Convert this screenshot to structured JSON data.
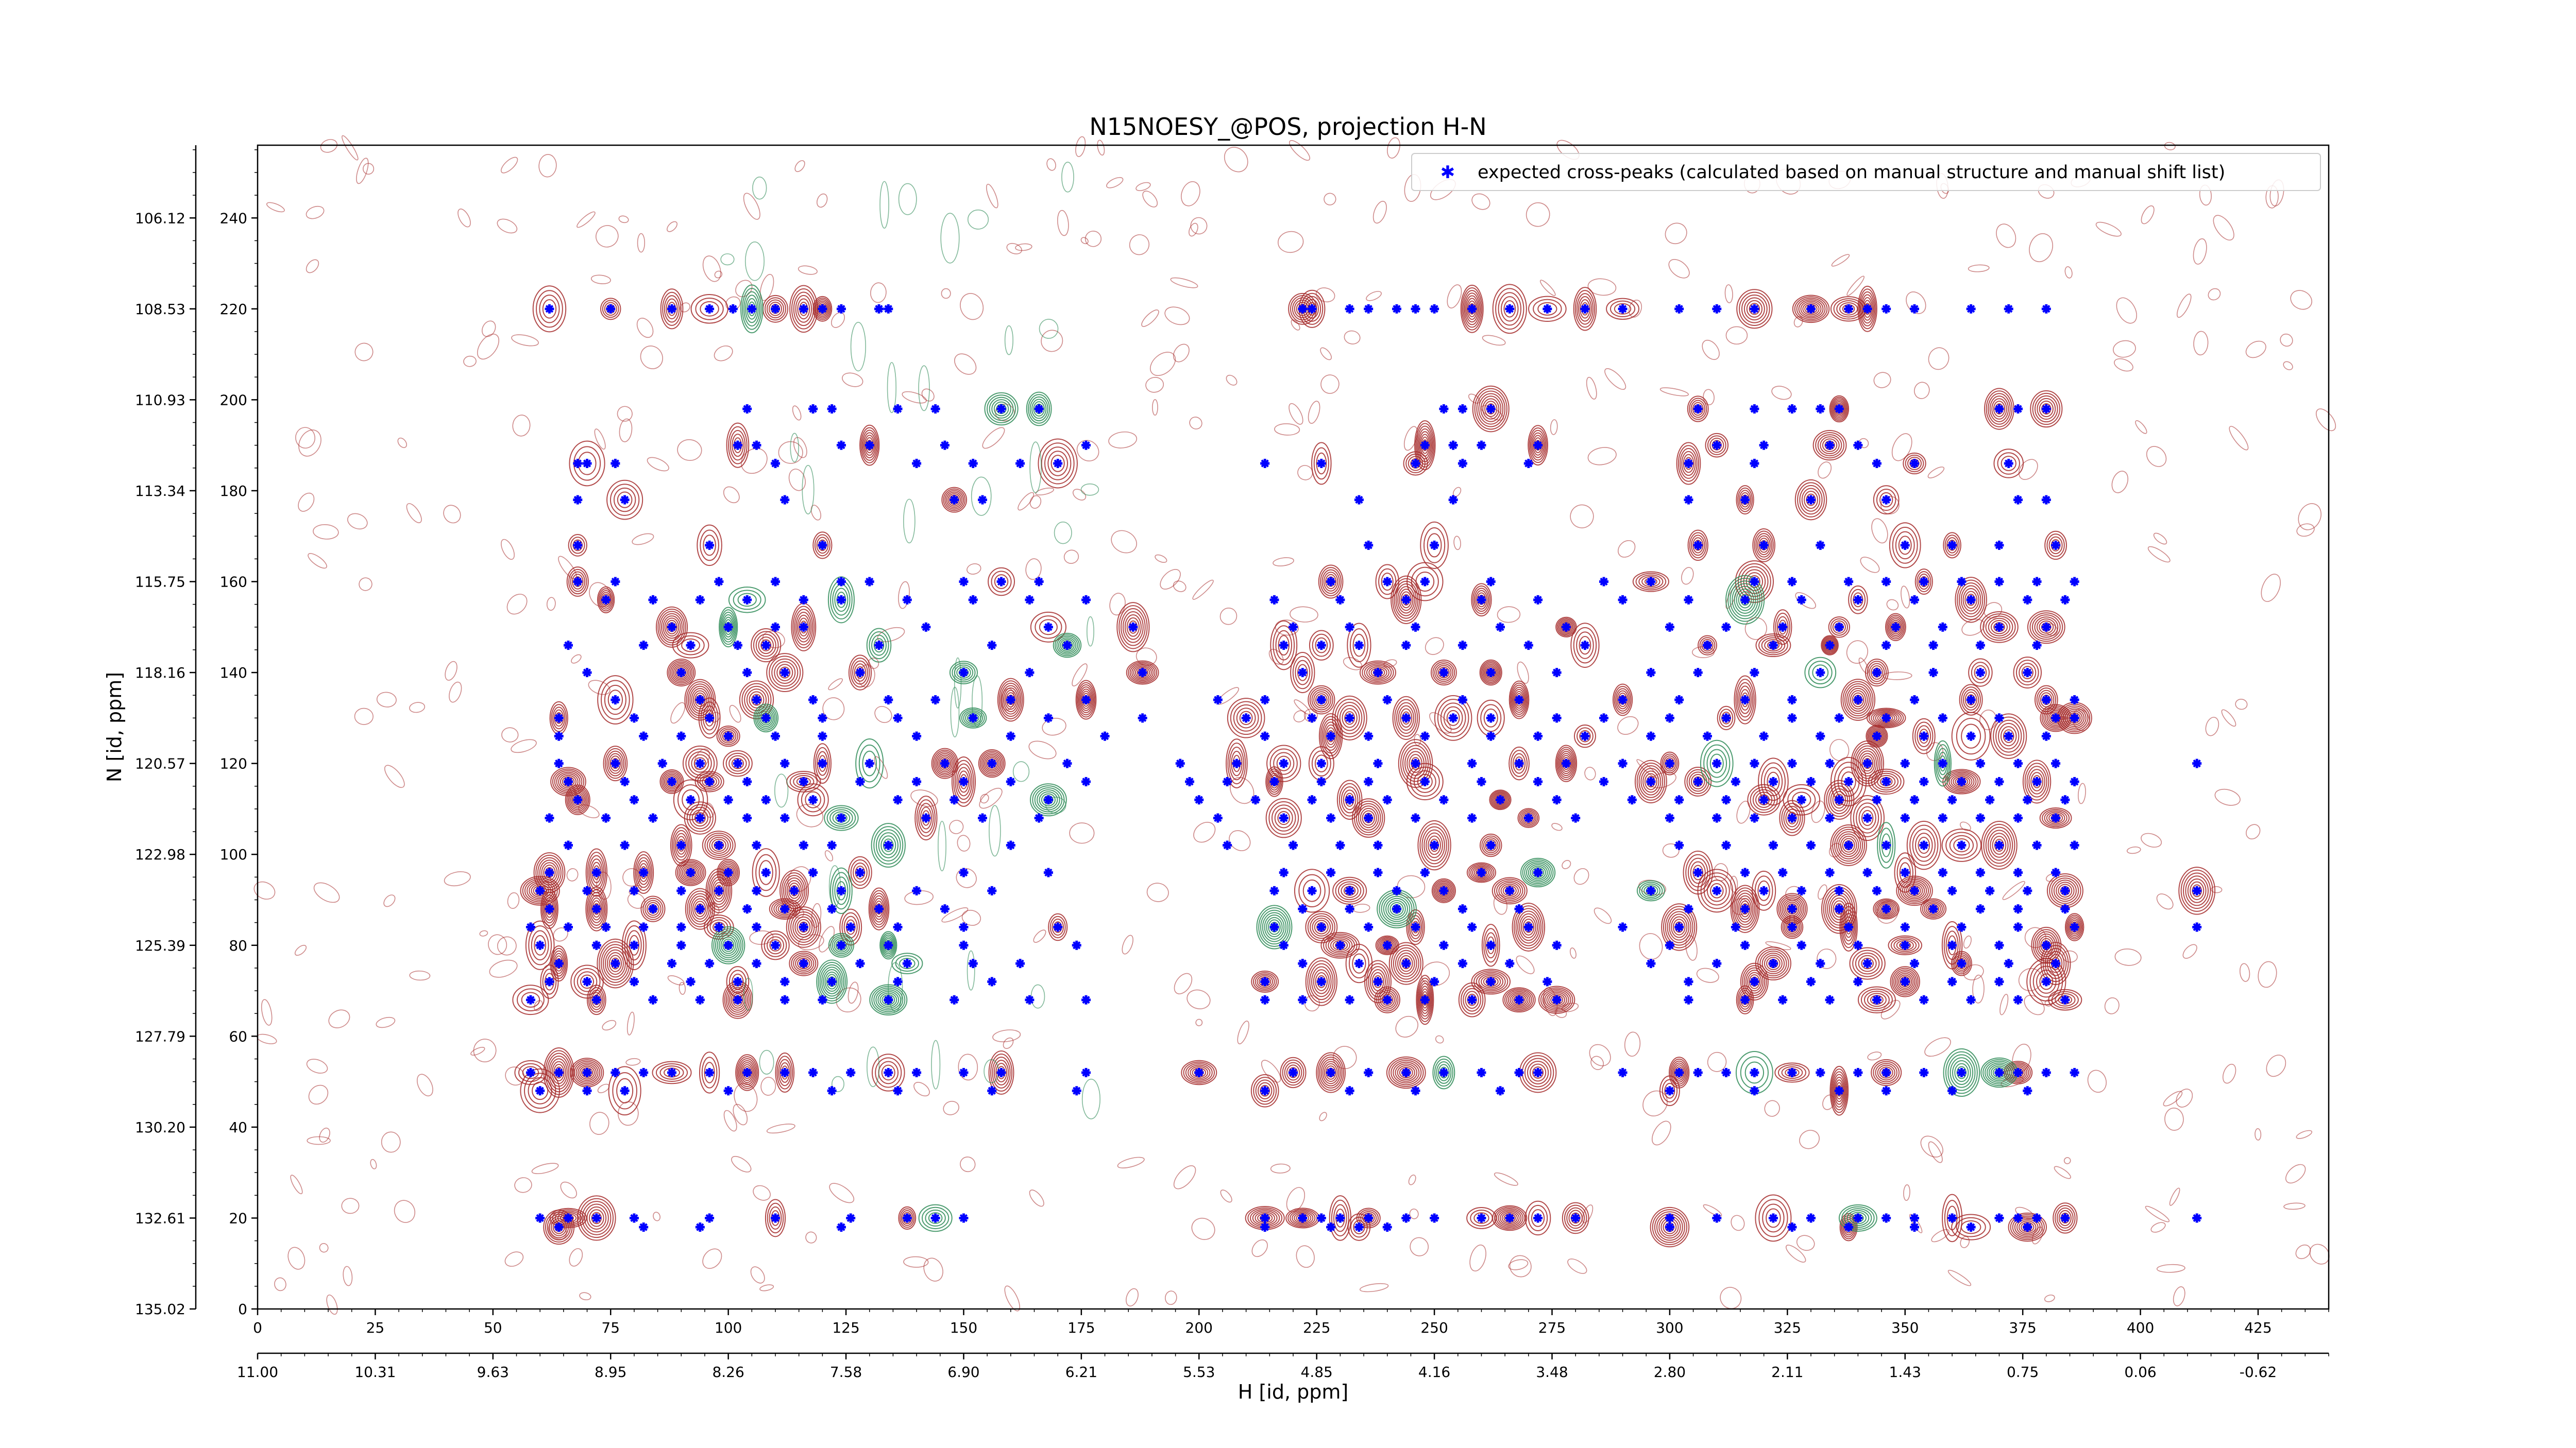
{
  "chart_data": {
    "type": "scatter",
    "title": "N15NOESY_@POS, projection H-N",
    "xlabel": "H [id, ppm]",
    "ylabel": "N [id, ppm]",
    "xlim": [
      0,
      440
    ],
    "ylim": [
      0,
      256
    ],
    "x_ticks": [
      0,
      25,
      50,
      75,
      100,
      125,
      150,
      175,
      200,
      225,
      250,
      275,
      300,
      325,
      350,
      375,
      400,
      425
    ],
    "x_ppm_ticks": [
      "11.00",
      "10.31",
      "9.63",
      "8.95",
      "8.26",
      "7.58",
      "6.90",
      "6.21",
      "5.53",
      "4.85",
      "4.16",
      "3.48",
      "2.80",
      "2.11",
      "1.43",
      "0.75",
      "0.06",
      "-0.62"
    ],
    "y_ticks": [
      0,
      20,
      40,
      60,
      80,
      100,
      120,
      140,
      160,
      180,
      200,
      220,
      240
    ],
    "y_ppm_ticks": [
      "135.02",
      "132.61",
      "130.20",
      "127.79",
      "125.39",
      "122.98",
      "120.57",
      "118.16",
      "115.75",
      "113.34",
      "110.93",
      "108.53",
      "106.12"
    ],
    "legend": {
      "placement": "top-right",
      "entries": [
        "expected cross-peaks (calculated based on manual structure and manual shift list)"
      ]
    },
    "colors": {
      "expected": "#0000ff",
      "positive_contour": "#a52a2a",
      "negative_contour": "#2e8b57"
    },
    "series": [
      {
        "name": "expected cross-peaks (calculated based on manual structure and manual shift list)",
        "rows": [
          {
            "y": 220,
            "x": [
              62,
              75,
              88,
              96,
              101,
              105,
              110,
              116,
              120,
              124,
              132,
              134,
              222,
              224,
              232,
              236,
              242,
              246,
              250,
              258,
              266,
              274,
              282,
              290,
              302,
              310,
              318,
              330,
              338,
              342,
              346,
              352,
              364,
              372,
              380
            ]
          },
          {
            "y": 198,
            "x": [
              104,
              118,
              122,
              136,
              144,
              158,
              166,
              252,
              256,
              262,
              306,
              318,
              326,
              332,
              336,
              370,
              374,
              380
            ]
          },
          {
            "y": 190,
            "x": [
              102,
              106,
              124,
              130,
              146,
              176,
              248,
              254,
              260,
              272,
              310,
              320,
              334,
              340
            ]
          },
          {
            "y": 186,
            "x": 68
          },
          {
            "y": 186,
            "x": [
              70,
              76,
              110,
              140,
              152,
              162,
              170,
              214,
              226,
              246,
              256,
              270,
              304,
              318,
              344,
              352,
              372
            ]
          },
          {
            "y": 178,
            "x": [
              68,
              78,
              112,
              148,
              154,
              234,
              254,
              304,
              316,
              330,
              346,
              374,
              380
            ]
          },
          {
            "y": 168,
            "x": [
              68,
              96,
              120,
              236,
              250,
              306,
              320,
              332,
              350,
              360,
              370,
              382
            ]
          },
          {
            "y": 160,
            "x": [
              68,
              76,
              98,
              110,
              124,
              130,
              150,
              158,
              166,
              228,
              240,
              248,
              262,
              286,
              296,
              318,
              326,
              338,
              346,
              354,
              362,
              370,
              378,
              386
            ]
          },
          {
            "y": 156,
            "x": [
              74,
              84,
              94,
              104,
              116,
              124,
              138,
              152,
              164,
              176,
              216,
              230,
              244,
              260,
              272,
              290,
              304,
              316,
              328,
              340,
              352,
              364,
              376,
              384
            ]
          },
          {
            "y": 150,
            "x": [
              88,
              100,
              110,
              116,
              142,
              168,
              186,
              220,
              232,
              246,
              264,
              278,
              300,
              312,
              324,
              336,
              348,
              358,
              370,
              380
            ]
          },
          {
            "y": 146,
            "x": [
              66,
              82,
              92,
              102,
              108,
              132,
              156,
              172,
              218,
              226,
              234,
              244,
              256,
              270,
              282,
              308,
              322,
              334,
              346,
              356,
              366,
              378
            ]
          },
          {
            "y": 140,
            "x": [
              70,
              90,
              104,
              112,
              128,
              150,
              164,
              188,
              222,
              238,
              252,
              262,
              276,
              296,
              306,
              318,
              332,
              344,
              356,
              366,
              376
            ]
          },
          {
            "y": 134,
            "x": [
              76,
              94,
              106,
              118,
              134,
              144,
              160,
              176,
              204,
              214,
              226,
              240,
              256,
              268,
              290,
              302,
              316,
              326,
              340,
              352,
              364,
              380,
              386
            ]
          },
          {
            "y": 130,
            "x": [
              64,
              80,
              96,
              108,
              120,
              136,
              152,
              168,
              188,
              210,
              224,
              232,
              244,
              254,
              262,
              276,
              286,
              300,
              312,
              326,
              336,
              346,
              358,
              370,
              382,
              386
            ]
          },
          {
            "y": 126,
            "x": [
              64,
              82,
              90,
              100,
              110,
              120,
              140,
              160,
              180,
              214,
              228,
              236,
              248,
              262,
              272,
              282,
              296,
              308,
              320,
              332,
              344,
              354,
              364,
              372,
              380
            ]
          },
          {
            "y": 120,
            "x": [
              64,
              76,
              86,
              94,
              102,
              112,
              120,
              130,
              146,
              156,
              172,
              196,
              208,
              218,
              226,
              238,
              246,
              258,
              268,
              278,
              290,
              300,
              310,
              318,
              326,
              334,
              342,
              350,
              358,
              366,
              374,
              382,
              412
            ]
          },
          {
            "y": 116,
            "x": [
              66,
              78,
              88,
              96,
              104,
              116,
              128,
              140,
              150,
              160,
              176,
              198,
              206,
              216,
              226,
              236,
              248,
              260,
              272,
              286,
              296,
              306,
              314,
              322,
              330,
              338,
              346,
              354,
              362,
              370,
              378,
              386
            ]
          },
          {
            "y": 112,
            "x": [
              68,
              80,
              92,
              100,
              108,
              118,
              136,
              148,
              168,
              200,
              212,
              224,
              232,
              240,
              252,
              264,
              276,
              292,
              302,
              312,
              320,
              328,
              336,
              344,
              352,
              360,
              368,
              376,
              384
            ]
          },
          {
            "y": 108,
            "x": [
              62,
              74,
              84,
              94,
              104,
              112,
              124,
              142,
              154,
              166,
              204,
              218,
              228,
              236,
              246,
              258,
              270,
              280,
              300,
              310,
              318,
              326,
              334,
              342,
              350,
              358,
              366,
              374,
              382
            ]
          },
          {
            "y": 102,
            "x": [
              66,
              78,
              90,
              98,
              106,
              116,
              122,
              134,
              160,
              206,
              220,
              230,
              238,
              250,
              262,
              302,
              312,
              322,
              330,
              338,
              346,
              354,
              362,
              370,
              378,
              386
            ]
          },
          {
            "y": 96,
            "x": [
              62,
              72,
              82,
              92,
              100,
              108,
              118,
              128,
              150,
              168,
              218,
              228,
              238,
              248,
              260,
              272,
              306,
              316,
              324,
              334,
              342,
              350,
              358,
              366,
              374,
              382
            ]
          },
          {
            "y": 92,
            "x": [
              60,
              70,
              80,
              90,
              98,
              106,
              114,
              124,
              140,
              156,
              216,
              224,
              232,
              242,
              252,
              266,
              296,
              310,
              320,
              328,
              336,
              344,
              352,
              360,
              368,
              376,
              384,
              412
            ]
          },
          {
            "y": 88,
            "x": [
              62,
              72,
              84,
              94,
              104,
              112,
              122,
              132,
              146,
              222,
              232,
              242,
              256,
              268,
              304,
              316,
              326,
              336,
              346,
              356,
              366,
              374,
              384
            ]
          },
          {
            "y": 84,
            "x": [
              58,
              66,
              74,
              82,
              90,
              98,
              106,
              116,
              126,
              136,
              150,
              170,
              216,
              226,
              236,
              246,
              258,
              270,
              290,
              302,
              314,
              326,
              338,
              350,
              362,
              374,
              386,
              412
            ]
          },
          {
            "y": 80,
            "x": [
              60,
              72,
              80,
              90,
              100,
              110,
              124,
              134,
              150,
              174,
              218,
              230,
              240,
              252,
              262,
              276,
              300,
              316,
              328,
              340,
              350,
              360,
              370,
              380
            ]
          },
          {
            "y": 76,
            "x": [
              64,
              76,
              88,
              96,
              106,
              116,
              128,
              138,
              152,
              162,
              222,
              234,
              244,
              256,
              266,
              296,
              310,
              322,
              332,
              342,
              352,
              362,
              372,
              382
            ]
          },
          {
            "y": 72,
            "x": [
              62,
              70,
              80,
              92,
              102,
              112,
              122,
              136,
              156,
              214,
              226,
              238,
              250,
              262,
              274,
              304,
              318,
              330,
              340,
              350,
              360,
              370,
              380
            ]
          },
          {
            "y": 68,
            "x": [
              58,
              72,
              84,
              94,
              102,
              112,
              120,
              134,
              148,
              164,
              176,
              214,
              222,
              232,
              240,
              248,
              258,
              268,
              276,
              304,
              316,
              324,
              334,
              344,
              354,
              364,
              374,
              384
            ]
          },
          {
            "y": 52,
            "x": [
              58,
              64,
              70,
              76,
              82,
              88,
              96,
              104,
              112,
              118,
              126,
              134,
              140,
              150,
              158,
              176,
              200,
              220,
              228,
              236,
              244,
              252,
              260,
              268,
              272,
              290,
              302,
              306,
              312,
              318,
              326,
              332,
              340,
              346,
              354,
              362,
              370,
              374,
              380,
              386
            ]
          },
          {
            "y": 48,
            "x": [
              60,
              70,
              78,
              100,
              122,
              136,
              156,
              174,
              214,
              232,
              246,
              264,
              300,
              318,
              336,
              346,
              360,
              376
            ]
          },
          {
            "y": 20,
            "x": [
              60,
              66,
              72,
              80,
              96,
              110,
              126,
              138,
              144,
              150,
              214,
              222,
              226,
              230,
              236,
              244,
              250,
              260,
              266,
              272,
              280,
              300,
              310,
              322,
              330,
              340,
              346,
              352,
              360,
              370,
              374,
              378,
              384,
              412
            ]
          },
          {
            "y": 18,
            "x": [
              64,
              82,
              94,
              124,
              214,
              228,
              234,
              240,
              300,
              326,
              338,
              352,
              364,
              376
            ]
          }
        ]
      }
    ]
  }
}
